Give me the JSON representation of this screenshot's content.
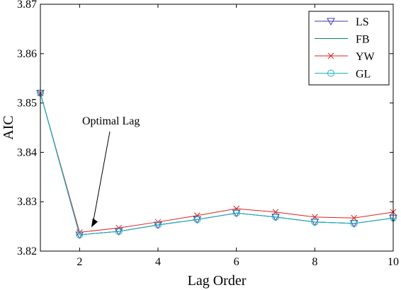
{
  "chart_data": {
    "type": "line",
    "xlabel": "Lag Order",
    "ylabel": "AIC",
    "xlim": [
      1,
      10
    ],
    "ylim": [
      3.82,
      3.87
    ],
    "xticks": [
      2,
      4,
      6,
      8,
      10
    ],
    "yticks": [
      3.82,
      3.83,
      3.84,
      3.85,
      3.86,
      3.87
    ],
    "ytick_labels": [
      "3.82",
      "3.83",
      "3.84",
      "3.85",
      "3.86",
      "3.87"
    ],
    "x": [
      1,
      2,
      3,
      4,
      5,
      6,
      7,
      8,
      9,
      10
    ],
    "series": [
      {
        "name": "LS",
        "color": "#3b3bb0",
        "marker": "triangle-down",
        "values": [
          3.852,
          3.8233,
          3.824,
          3.8253,
          3.8264,
          3.8277,
          3.8269,
          3.8259,
          3.8256,
          3.8267
        ]
      },
      {
        "name": "FB",
        "color": "#008a60",
        "marker": "none",
        "values": [
          3.852,
          3.8233,
          3.824,
          3.8253,
          3.8264,
          3.8277,
          3.8269,
          3.8259,
          3.8256,
          3.8267
        ]
      },
      {
        "name": "YW",
        "color": "#e02020",
        "marker": "x",
        "values": [
          3.852,
          3.8238,
          3.8247,
          3.8259,
          3.8272,
          3.8286,
          3.8279,
          3.8269,
          3.8267,
          3.8279
        ]
      },
      {
        "name": "GL",
        "color": "#20b0c0",
        "marker": "circle",
        "values": [
          3.852,
          3.8233,
          3.824,
          3.8253,
          3.8264,
          3.8277,
          3.8269,
          3.8259,
          3.8256,
          3.8267
        ]
      }
    ],
    "legend": "top-right",
    "grid": false,
    "annotation": {
      "text": "Optimal Lag",
      "target_x": 2.3,
      "target_y": 3.8248
    }
  }
}
